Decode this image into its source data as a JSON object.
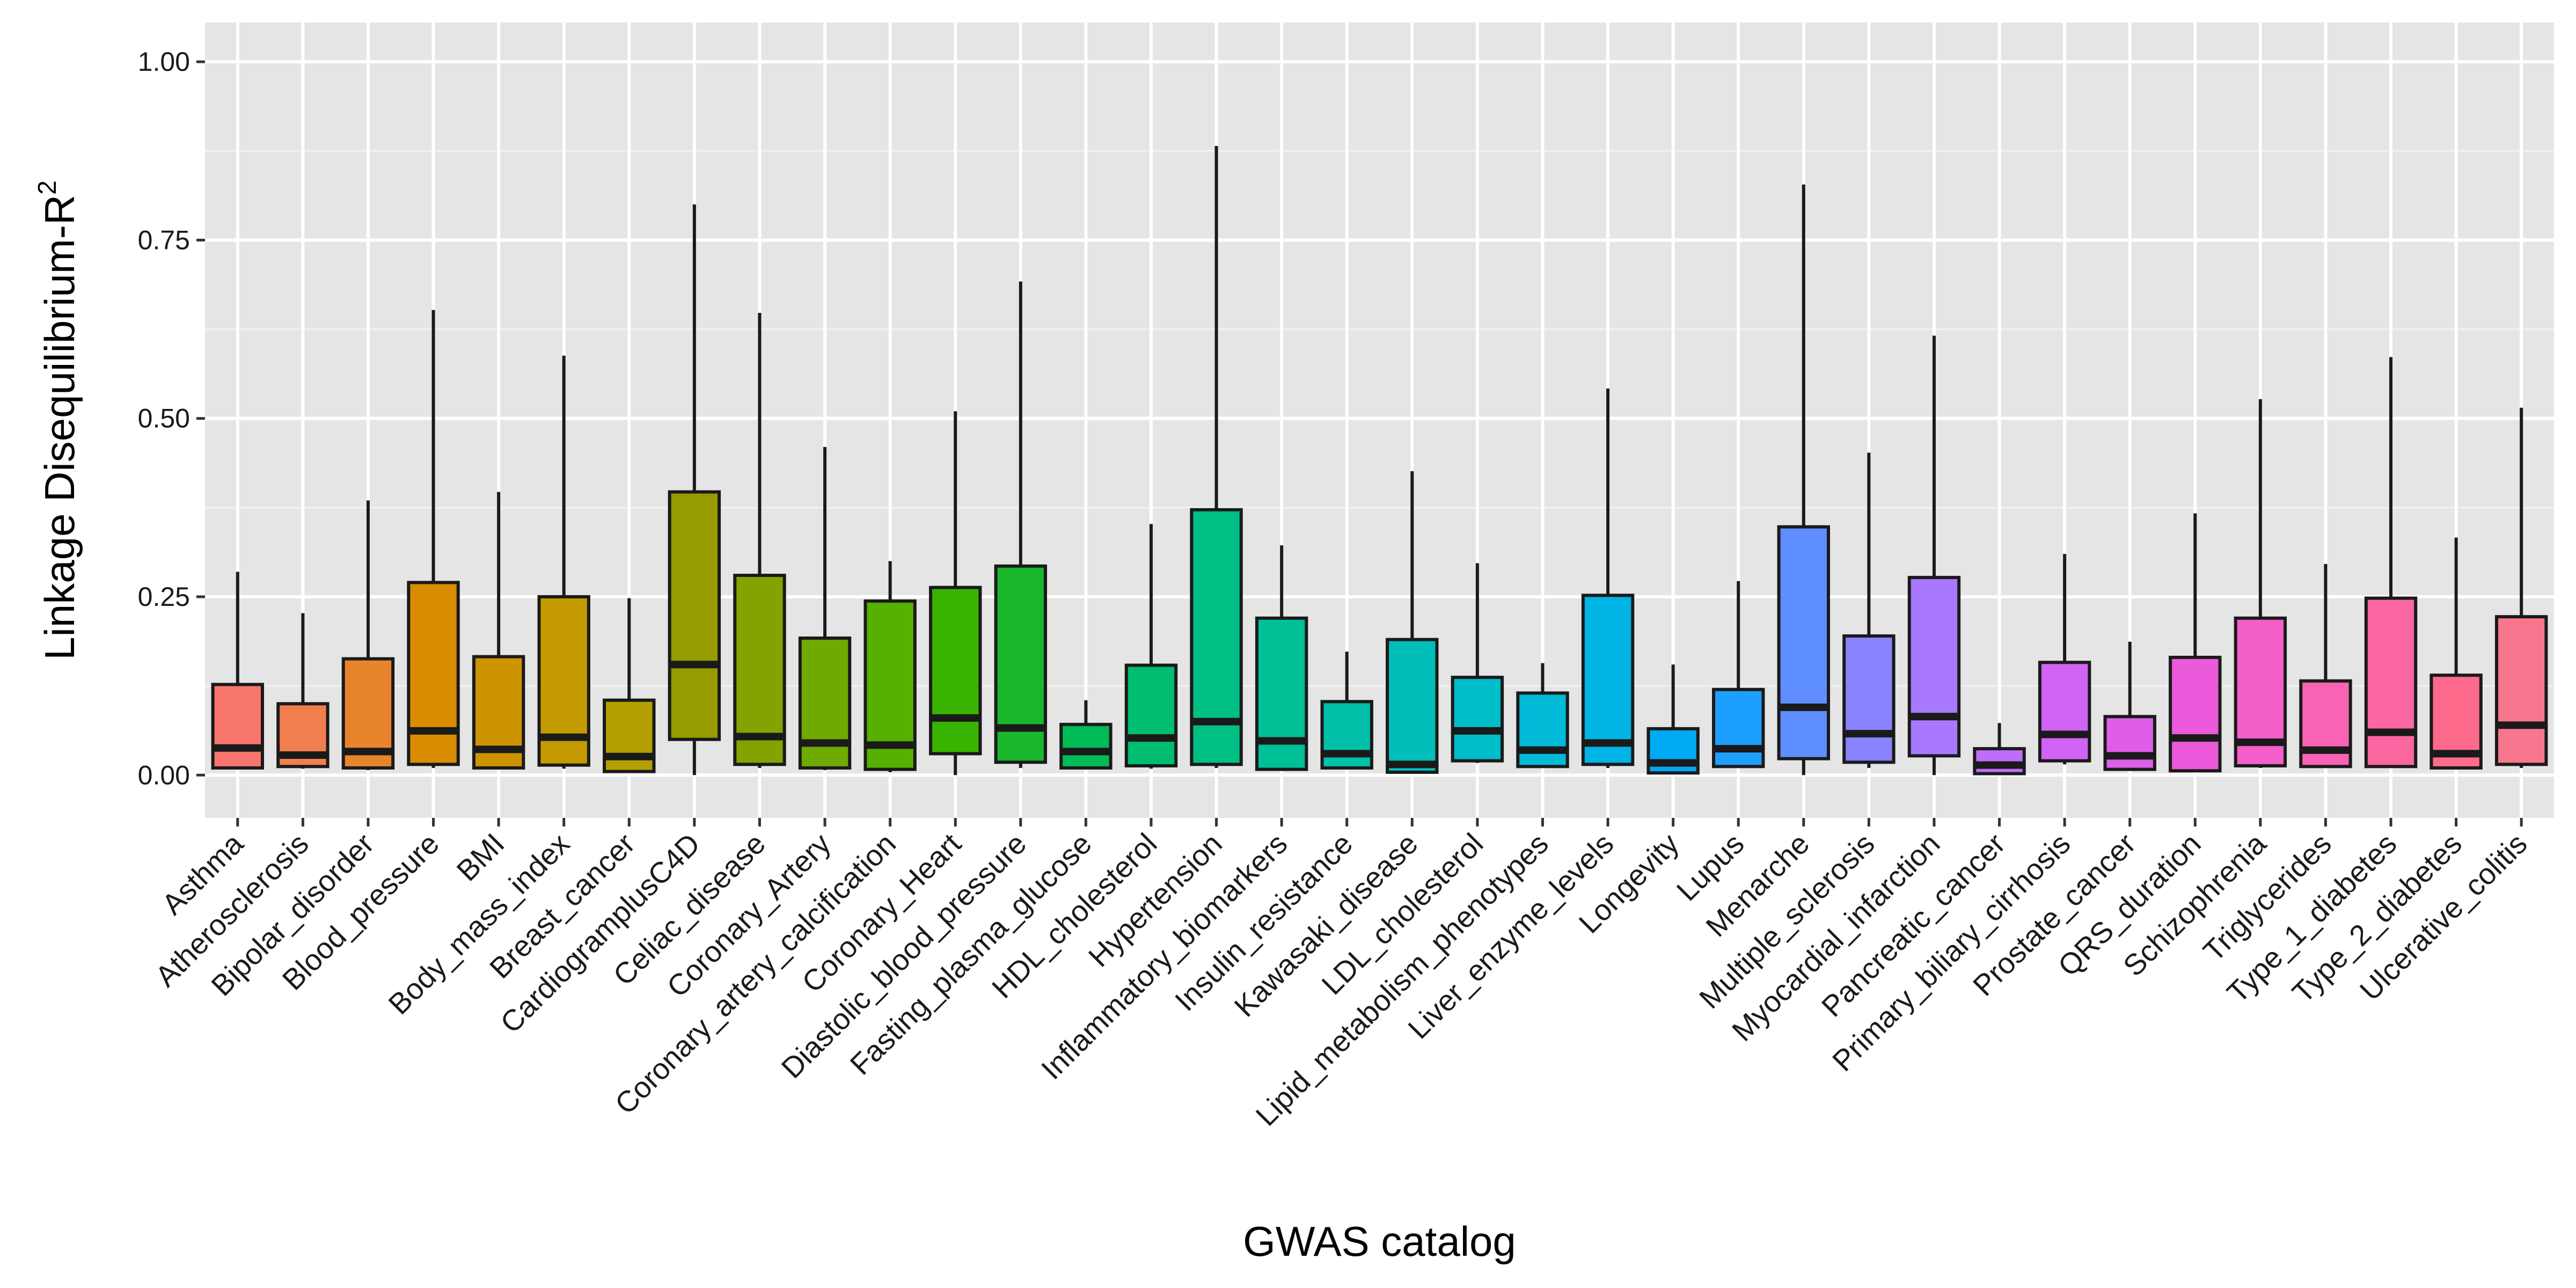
{
  "chart_data": {
    "type": "boxplot",
    "xlabel": "GWAS catalog",
    "ylabel": "Linkage Disequilibrium-R",
    "ylabel_superscript": "2",
    "ylim": [
      -0.06,
      1.055
    ],
    "yticks": [
      0.0,
      0.25,
      0.5,
      0.75,
      1.0
    ],
    "ytick_labels": [
      "0.00",
      "0.25",
      "0.50",
      "0.75",
      "1.00"
    ],
    "grid": true,
    "background": "#e5e5e5",
    "legend": "none",
    "categories": [
      "Asthma",
      "Atherosclerosis",
      "Bipolar_disorder",
      "Blood_pressure",
      "BMI",
      "Body_mass_index",
      "Breast_cancer",
      "CardiogramplusC4D",
      "Celiac_disease",
      "Coronary_Artery",
      "Coronary_artery_calcification",
      "Coronary_Heart",
      "Diastolic_blood_pressure",
      "Fasting_plasma_glucose",
      "HDL_cholesterol",
      "Hypertension",
      "Inflammatory_biomarkers",
      "Insulin_resistance",
      "Kawasaki_disease",
      "LDL_cholesterol",
      "Lipid_metabolism_phenotypes",
      "Liver_enzyme_levels",
      "Longevity",
      "Lupus",
      "Menarche",
      "Multiple_sclerosis",
      "Myocardial_infarction",
      "Pancreatic_cancer",
      "Primary_biliary_cirrhosis",
      "Prostate_cancer",
      "QRS_duration",
      "Schizophrenia",
      "Triglycerides",
      "Type_1_diabetes",
      "Type_2_diabetes",
      "Ulcerative_colitis"
    ],
    "boxes": [
      {
        "lower": 0.008,
        "q1": 0.01,
        "median": 0.038,
        "q3": 0.127,
        "upper": 0.285
      },
      {
        "lower": 0.009,
        "q1": 0.012,
        "median": 0.028,
        "q3": 0.1,
        "upper": 0.227
      },
      {
        "lower": 0.007,
        "q1": 0.01,
        "median": 0.033,
        "q3": 0.163,
        "upper": 0.385
      },
      {
        "lower": 0.01,
        "q1": 0.015,
        "median": 0.062,
        "q3": 0.27,
        "upper": 0.652
      },
      {
        "lower": 0.008,
        "q1": 0.01,
        "median": 0.036,
        "q3": 0.166,
        "upper": 0.397
      },
      {
        "lower": 0.009,
        "q1": 0.014,
        "median": 0.053,
        "q3": 0.25,
        "upper": 0.588
      },
      {
        "lower": 0.004,
        "q1": 0.005,
        "median": 0.026,
        "q3": 0.105,
        "upper": 0.248
      },
      {
        "lower": 0.0,
        "q1": 0.05,
        "median": 0.155,
        "q3": 0.397,
        "upper": 0.8
      },
      {
        "lower": 0.01,
        "q1": 0.015,
        "median": 0.054,
        "q3": 0.28,
        "upper": 0.648
      },
      {
        "lower": 0.007,
        "q1": 0.01,
        "median": 0.045,
        "q3": 0.192,
        "upper": 0.46
      },
      {
        "lower": 0.004,
        "q1": 0.008,
        "median": 0.042,
        "q3": 0.244,
        "upper": 0.3
      },
      {
        "lower": 0.0,
        "q1": 0.03,
        "median": 0.08,
        "q3": 0.263,
        "upper": 0.51
      },
      {
        "lower": 0.01,
        "q1": 0.018,
        "median": 0.066,
        "q3": 0.293,
        "upper": 0.692
      },
      {
        "lower": 0.008,
        "q1": 0.01,
        "median": 0.033,
        "q3": 0.071,
        "upper": 0.105
      },
      {
        "lower": 0.009,
        "q1": 0.013,
        "median": 0.052,
        "q3": 0.154,
        "upper": 0.352
      },
      {
        "lower": 0.01,
        "q1": 0.015,
        "median": 0.075,
        "q3": 0.372,
        "upper": 0.882
      },
      {
        "lower": 0.006,
        "q1": 0.008,
        "median": 0.048,
        "q3": 0.22,
        "upper": 0.322
      },
      {
        "lower": 0.009,
        "q1": 0.01,
        "median": 0.03,
        "q3": 0.103,
        "upper": 0.173
      },
      {
        "lower": 0.002,
        "q1": 0.004,
        "median": 0.015,
        "q3": 0.19,
        "upper": 0.426
      },
      {
        "lower": 0.017,
        "q1": 0.02,
        "median": 0.062,
        "q3": 0.137,
        "upper": 0.297
      },
      {
        "lower": 0.01,
        "q1": 0.012,
        "median": 0.035,
        "q3": 0.115,
        "upper": 0.157
      },
      {
        "lower": 0.01,
        "q1": 0.015,
        "median": 0.045,
        "q3": 0.252,
        "upper": 0.542
      },
      {
        "lower": 0.001,
        "q1": 0.003,
        "median": 0.017,
        "q3": 0.065,
        "upper": 0.155
      },
      {
        "lower": 0.01,
        "q1": 0.012,
        "median": 0.037,
        "q3": 0.12,
        "upper": 0.272
      },
      {
        "lower": 0.0,
        "q1": 0.023,
        "median": 0.095,
        "q3": 0.348,
        "upper": 0.828
      },
      {
        "lower": 0.01,
        "q1": 0.018,
        "median": 0.058,
        "q3": 0.195,
        "upper": 0.452
      },
      {
        "lower": 0.0,
        "q1": 0.027,
        "median": 0.082,
        "q3": 0.277,
        "upper": 0.616
      },
      {
        "lower": 0.001,
        "q1": 0.002,
        "median": 0.014,
        "q3": 0.037,
        "upper": 0.073
      },
      {
        "lower": 0.015,
        "q1": 0.02,
        "median": 0.057,
        "q3": 0.158,
        "upper": 0.31
      },
      {
        "lower": 0.006,
        "q1": 0.008,
        "median": 0.027,
        "q3": 0.082,
        "upper": 0.187
      },
      {
        "lower": 0.005,
        "q1": 0.006,
        "median": 0.052,
        "q3": 0.165,
        "upper": 0.367
      },
      {
        "lower": 0.01,
        "q1": 0.013,
        "median": 0.046,
        "q3": 0.22,
        "upper": 0.527
      },
      {
        "lower": 0.01,
        "q1": 0.012,
        "median": 0.035,
        "q3": 0.132,
        "upper": 0.296
      },
      {
        "lower": 0.01,
        "q1": 0.012,
        "median": 0.06,
        "q3": 0.248,
        "upper": 0.586
      },
      {
        "lower": 0.008,
        "q1": 0.01,
        "median": 0.03,
        "q3": 0.14,
        "upper": 0.333
      },
      {
        "lower": 0.01,
        "q1": 0.015,
        "median": 0.07,
        "q3": 0.222,
        "upper": 0.515
      }
    ],
    "colors": [
      "#F8766D",
      "#F17E4F",
      "#E8852C",
      "#DA8C00",
      "#CE9400",
      "#C39B00",
      "#B3A000",
      "#959B00",
      "#83A300",
      "#6FAA00",
      "#56B000",
      "#38B400",
      "#1AB72D",
      "#00BB55",
      "#00BD6F",
      "#00BF85",
      "#00C098",
      "#00C0AA",
      "#00BFBA",
      "#00BDCA",
      "#00BAD8",
      "#00B4E5",
      "#00A9F4",
      "#1C9FFF",
      "#5E8EFF",
      "#8A83FF",
      "#A879FF",
      "#BF6CFF",
      "#D163F7",
      "#DE5EE9",
      "#EA5ADA",
      "#F35EC8",
      "#F863B4",
      "#FB67A0",
      "#FD6A8C",
      "#F8768D"
    ]
  }
}
